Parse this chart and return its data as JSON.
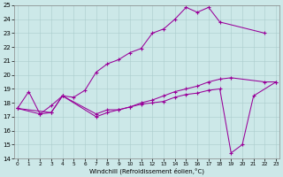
{
  "xlabel": "Windchill (Refroidissement éolien,°C)",
  "bg_color": "#cce8e8",
  "grid_color": "#aacccc",
  "line_color": "#990099",
  "curve1_x": [
    0,
    1,
    2,
    3,
    4,
    5,
    6,
    7,
    8,
    9,
    10,
    11,
    12,
    13,
    14,
    15,
    16,
    17,
    18,
    22
  ],
  "curve1_y": [
    17.6,
    18.8,
    17.2,
    17.8,
    18.5,
    18.4,
    18.9,
    20.2,
    20.8,
    21.1,
    21.6,
    21.9,
    23.0,
    23.3,
    24.0,
    24.85,
    24.5,
    24.85,
    23.8,
    23.0
  ],
  "curve2_x": [
    0,
    3,
    4,
    7,
    8,
    9,
    10,
    11,
    12,
    13,
    14,
    15,
    16,
    17,
    18,
    19,
    22,
    23
  ],
  "curve2_y": [
    17.6,
    17.3,
    18.5,
    17.0,
    17.3,
    17.5,
    17.7,
    18.0,
    18.2,
    18.5,
    18.8,
    19.0,
    19.2,
    19.5,
    19.7,
    19.8,
    19.5,
    19.5
  ],
  "curve3_x": [
    0,
    2,
    3,
    4,
    7,
    8,
    9,
    10,
    11,
    12,
    13,
    14,
    15,
    16,
    17,
    18,
    19,
    20,
    21,
    23
  ],
  "curve3_y": [
    17.6,
    17.2,
    17.3,
    18.5,
    17.2,
    17.5,
    17.5,
    17.7,
    17.9,
    18.0,
    18.1,
    18.4,
    18.6,
    18.7,
    18.9,
    19.0,
    14.4,
    15.0,
    18.5,
    19.5
  ],
  "xlim": [
    -0.3,
    23.3
  ],
  "ylim": [
    14,
    25
  ],
  "xticks": [
    0,
    1,
    2,
    3,
    4,
    5,
    6,
    7,
    8,
    9,
    10,
    11,
    12,
    13,
    14,
    15,
    16,
    17,
    18,
    19,
    20,
    21,
    22,
    23
  ],
  "yticks": [
    14,
    15,
    16,
    17,
    18,
    19,
    20,
    21,
    22,
    23,
    24,
    25
  ]
}
